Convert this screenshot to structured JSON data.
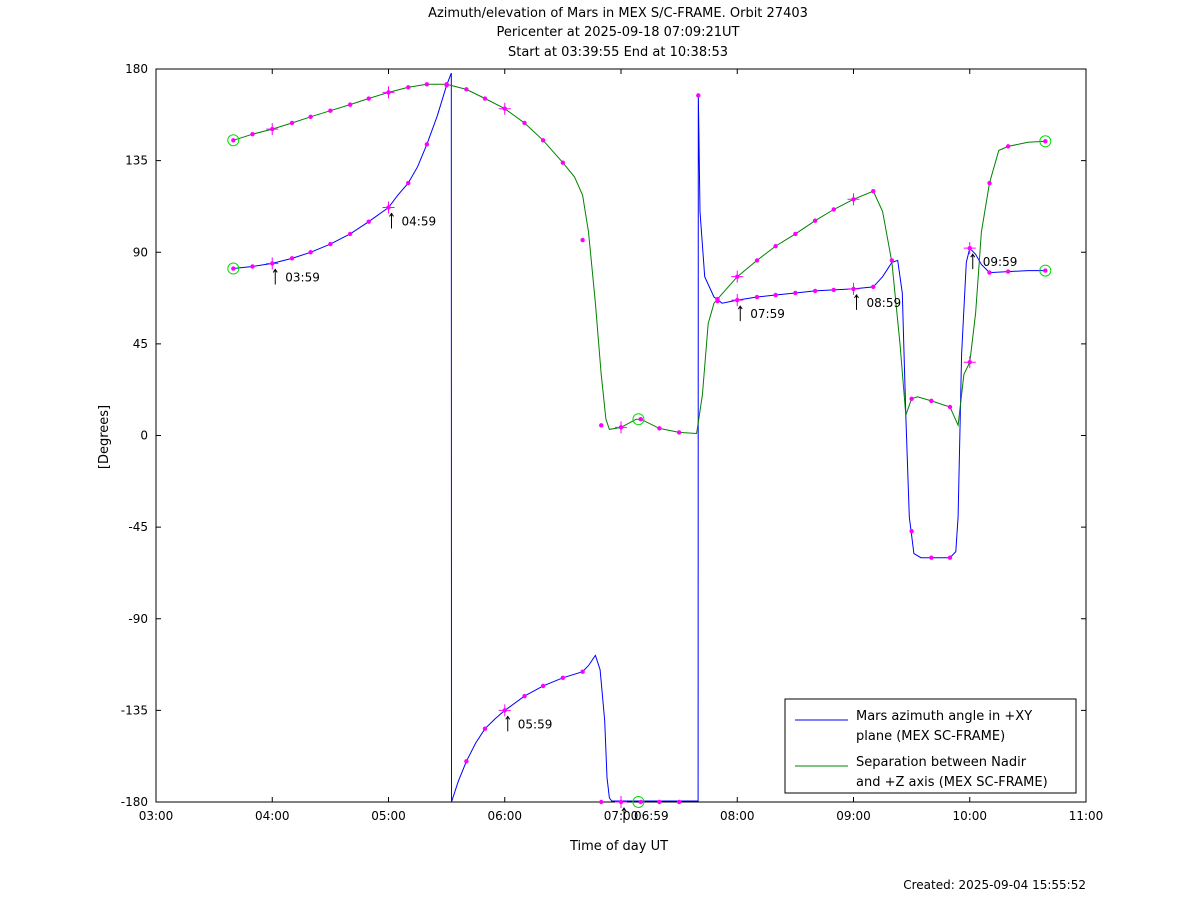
{
  "chart_data": {
    "type": "line",
    "title_lines": [
      "Azimuth/elevation of Mars in MEX S/C-FRAME.  Orbit 27403",
      "Pericenter at 2025-09-18 07:09:21UT",
      "Start at 03:39:55 End at 10:38:53"
    ],
    "xlabel": "Time of day UT",
    "ylabel": "[Degrees]",
    "xlim": [
      3.0,
      11.0
    ],
    "ylim": [
      -180,
      180
    ],
    "x_ticks": [
      {
        "value": 3,
        "label": "03:00"
      },
      {
        "value": 4,
        "label": "04:00"
      },
      {
        "value": 5,
        "label": "05:00"
      },
      {
        "value": 6,
        "label": "06:00"
      },
      {
        "value": 7,
        "label": "07:00"
      },
      {
        "value": 8,
        "label": "08:00"
      },
      {
        "value": 9,
        "label": "09:00"
      },
      {
        "value": 10,
        "label": "10:00"
      },
      {
        "value": 11,
        "label": "11:00"
      }
    ],
    "y_ticks": [
      {
        "value": 180,
        "label": "180"
      },
      {
        "value": 135,
        "label": "135"
      },
      {
        "value": 90,
        "label": "90"
      },
      {
        "value": 45,
        "label": "45"
      },
      {
        "value": 0,
        "label": "0"
      },
      {
        "value": -45,
        "label": "-45"
      },
      {
        "value": -90,
        "label": "-90"
      },
      {
        "value": -135,
        "label": "-135"
      },
      {
        "value": -180,
        "label": "-180"
      }
    ],
    "legend_position": "bottom-right",
    "series": [
      {
        "name": "Mars azimuth angle in +XY plane (MEX SC-FRAME)",
        "legend_lines": [
          "Mars azimuth angle in +XY",
          "plane (MEX SC-FRAME)"
        ],
        "color": "#0000ff",
        "points": [
          [
            3.665,
            82
          ],
          [
            3.83,
            83
          ],
          [
            4.0,
            84.5
          ],
          [
            4.17,
            87
          ],
          [
            4.33,
            90
          ],
          [
            4.5,
            94
          ],
          [
            4.67,
            99
          ],
          [
            4.83,
            105
          ],
          [
            5.0,
            112
          ],
          [
            5.08,
            118
          ],
          [
            5.17,
            124
          ],
          [
            5.25,
            132
          ],
          [
            5.33,
            143
          ],
          [
            5.42,
            157
          ],
          [
            5.5,
            172
          ],
          [
            5.54,
            178
          ],
          [
            5.542,
            -180
          ],
          [
            5.6,
            -170
          ],
          [
            5.67,
            -160
          ],
          [
            5.75,
            -151
          ],
          [
            5.83,
            -144
          ],
          [
            5.92,
            -139
          ],
          [
            6.0,
            -135
          ],
          [
            6.17,
            -128
          ],
          [
            6.33,
            -123
          ],
          [
            6.5,
            -119
          ],
          [
            6.67,
            -116
          ],
          [
            6.72,
            -113
          ],
          [
            6.78,
            -108
          ],
          [
            6.82,
            -115
          ],
          [
            6.86,
            -140
          ],
          [
            6.88,
            -168
          ],
          [
            6.9,
            -178
          ],
          [
            6.92,
            -179.5
          ],
          [
            7.0,
            -179.5
          ],
          [
            7.17,
            -179.5
          ],
          [
            7.5,
            -179.5
          ],
          [
            7.663,
            -179.5
          ],
          [
            7.665,
            168
          ],
          [
            7.68,
            110
          ],
          [
            7.72,
            78
          ],
          [
            7.8,
            68
          ],
          [
            7.87,
            65
          ],
          [
            8.0,
            66.5
          ],
          [
            8.17,
            68
          ],
          [
            8.33,
            69
          ],
          [
            8.5,
            70
          ],
          [
            8.67,
            71
          ],
          [
            8.83,
            71.5
          ],
          [
            9.0,
            72
          ],
          [
            9.17,
            73
          ],
          [
            9.25,
            78
          ],
          [
            9.33,
            85
          ],
          [
            9.38,
            86
          ],
          [
            9.42,
            70
          ],
          [
            9.45,
            10
          ],
          [
            9.48,
            -40
          ],
          [
            9.52,
            -58
          ],
          [
            9.58,
            -60
          ],
          [
            9.67,
            -60
          ],
          [
            9.83,
            -60
          ],
          [
            9.88,
            -57
          ],
          [
            9.9,
            -40
          ],
          [
            9.93,
            40
          ],
          [
            9.97,
            85
          ],
          [
            10.0,
            92
          ],
          [
            10.05,
            89
          ],
          [
            10.1,
            84
          ],
          [
            10.17,
            80
          ],
          [
            10.33,
            80.5
          ],
          [
            10.5,
            81
          ],
          [
            10.65,
            81
          ]
        ],
        "markers": [
          [
            3.665,
            82
          ],
          [
            3.83,
            83
          ],
          [
            4.0,
            84.5
          ],
          [
            4.17,
            87
          ],
          [
            4.33,
            90
          ],
          [
            4.5,
            94
          ],
          [
            4.67,
            99
          ],
          [
            4.83,
            105
          ],
          [
            5.0,
            112
          ],
          [
            5.17,
            124
          ],
          [
            5.33,
            143
          ],
          [
            5.5,
            172
          ],
          [
            5.67,
            -160
          ],
          [
            5.83,
            -144
          ],
          [
            6.0,
            -135
          ],
          [
            6.17,
            -128
          ],
          [
            6.33,
            -123
          ],
          [
            6.5,
            -119
          ],
          [
            6.67,
            -116
          ],
          [
            6.83,
            -180
          ],
          [
            7.0,
            -180
          ],
          [
            7.17,
            -180
          ],
          [
            7.33,
            -180
          ],
          [
            7.5,
            -180
          ],
          [
            7.665,
            167
          ],
          [
            7.83,
            66
          ],
          [
            8.0,
            66.5
          ],
          [
            8.17,
            68
          ],
          [
            8.33,
            69
          ],
          [
            8.5,
            70
          ],
          [
            8.67,
            71
          ],
          [
            8.83,
            71.5
          ],
          [
            9.0,
            72
          ],
          [
            9.17,
            73
          ],
          [
            9.33,
            86
          ],
          [
            9.5,
            -47
          ],
          [
            9.67,
            -60
          ],
          [
            9.83,
            -60
          ],
          [
            10.0,
            92
          ],
          [
            10.17,
            80
          ],
          [
            10.33,
            80.5
          ],
          [
            10.65,
            81
          ]
        ],
        "hour_crosses": [
          [
            4.0,
            84.5
          ],
          [
            5.0,
            112
          ],
          [
            6.0,
            -135
          ],
          [
            7.0,
            -180
          ],
          [
            8.0,
            66.5
          ],
          [
            9.0,
            72
          ],
          [
            10.0,
            92
          ]
        ],
        "circles": [
          [
            3.665,
            82
          ],
          [
            10.65,
            81
          ]
        ]
      },
      {
        "name": "Separation between Nadir and +Z axis (MEX SC-FRAME)",
        "legend_lines": [
          "Separation between Nadir",
          "and +Z axis (MEX SC-FRAME)"
        ],
        "color": "#008000",
        "points": [
          [
            3.665,
            145
          ],
          [
            3.83,
            148
          ],
          [
            4.0,
            150.5
          ],
          [
            4.17,
            153.5
          ],
          [
            4.33,
            156.5
          ],
          [
            4.5,
            159.5
          ],
          [
            4.67,
            162.5
          ],
          [
            4.83,
            165.5
          ],
          [
            5.0,
            168.5
          ],
          [
            5.17,
            171
          ],
          [
            5.33,
            172.5
          ],
          [
            5.5,
            172.5
          ],
          [
            5.67,
            170
          ],
          [
            5.83,
            165.5
          ],
          [
            6.0,
            160.5
          ],
          [
            6.17,
            153.5
          ],
          [
            6.33,
            145
          ],
          [
            6.5,
            134
          ],
          [
            6.6,
            127
          ],
          [
            6.67,
            118
          ],
          [
            6.72,
            100
          ],
          [
            6.78,
            65
          ],
          [
            6.83,
            30
          ],
          [
            6.87,
            8
          ],
          [
            6.9,
            3
          ],
          [
            7.0,
            4
          ],
          [
            7.13,
            8
          ],
          [
            7.17,
            8
          ],
          [
            7.33,
            3.5
          ],
          [
            7.5,
            1.5
          ],
          [
            7.65,
            1
          ],
          [
            7.7,
            20
          ],
          [
            7.75,
            55
          ],
          [
            7.8,
            65
          ],
          [
            7.83,
            67
          ],
          [
            8.0,
            78
          ],
          [
            8.17,
            86
          ],
          [
            8.33,
            93
          ],
          [
            8.5,
            99
          ],
          [
            8.67,
            105.5
          ],
          [
            8.83,
            111
          ],
          [
            9.0,
            116
          ],
          [
            9.17,
            120
          ],
          [
            9.25,
            110
          ],
          [
            9.33,
            85
          ],
          [
            9.4,
            45
          ],
          [
            9.45,
            10
          ],
          [
            9.5,
            18
          ],
          [
            9.55,
            19
          ],
          [
            9.67,
            17
          ],
          [
            9.83,
            14
          ],
          [
            9.9,
            5
          ],
          [
            9.95,
            30
          ],
          [
            10.0,
            36
          ],
          [
            10.05,
            60
          ],
          [
            10.1,
            100
          ],
          [
            10.17,
            124
          ],
          [
            10.25,
            140
          ],
          [
            10.33,
            142
          ],
          [
            10.5,
            144
          ],
          [
            10.65,
            144.5
          ]
        ],
        "markers": [
          [
            3.665,
            145
          ],
          [
            3.83,
            148
          ],
          [
            4.0,
            150.5
          ],
          [
            4.17,
            153.5
          ],
          [
            4.33,
            156.5
          ],
          [
            4.5,
            159.5
          ],
          [
            4.67,
            162.5
          ],
          [
            4.83,
            165.5
          ],
          [
            5.0,
            168.5
          ],
          [
            5.17,
            171
          ],
          [
            5.33,
            172.5
          ],
          [
            5.5,
            172.5
          ],
          [
            5.67,
            170
          ],
          [
            5.83,
            165.5
          ],
          [
            6.0,
            160.5
          ],
          [
            6.17,
            153.5
          ],
          [
            6.33,
            145
          ],
          [
            6.5,
            134
          ],
          [
            6.67,
            96
          ],
          [
            6.83,
            5
          ],
          [
            7.0,
            4
          ],
          [
            7.17,
            8
          ],
          [
            7.33,
            3.5
          ],
          [
            7.5,
            1.5
          ],
          [
            7.83,
            67
          ],
          [
            8.0,
            78
          ],
          [
            8.17,
            86
          ],
          [
            8.33,
            93
          ],
          [
            8.5,
            99
          ],
          [
            8.67,
            105.5
          ],
          [
            8.83,
            111
          ],
          [
            9.0,
            116
          ],
          [
            9.17,
            120
          ],
          [
            9.5,
            18
          ],
          [
            9.67,
            17
          ],
          [
            9.83,
            14
          ],
          [
            10.0,
            36
          ],
          [
            10.17,
            124
          ],
          [
            10.33,
            142
          ],
          [
            10.65,
            144.5
          ]
        ],
        "hour_crosses": [
          [
            4.0,
            150.5
          ],
          [
            5.0,
            168.5
          ],
          [
            6.0,
            160.5
          ],
          [
            7.0,
            4
          ],
          [
            8.0,
            78
          ],
          [
            9.0,
            116
          ],
          [
            10.0,
            36
          ]
        ],
        "circles": [
          [
            3.665,
            145
          ],
          [
            7.15,
            8
          ],
          [
            10.65,
            144.5
          ],
          [
            7.15,
            -180
          ]
        ]
      }
    ],
    "annotations": [
      {
        "x": 4.0,
        "y": 84.5,
        "label": "03:59"
      },
      {
        "x": 5.0,
        "y": 112,
        "label": "04:59"
      },
      {
        "x": 6.0,
        "y": -135,
        "label": "05:59"
      },
      {
        "x": 7.0,
        "y": -180,
        "label": "06:59"
      },
      {
        "x": 8.0,
        "y": 66.5,
        "label": "07:59"
      },
      {
        "x": 9.0,
        "y": 72,
        "label": "08:59"
      },
      {
        "x": 10.0,
        "y": 92,
        "label": "09:59"
      }
    ]
  },
  "footer": {
    "created": "Created: 2025-09-04 15:55:52"
  }
}
